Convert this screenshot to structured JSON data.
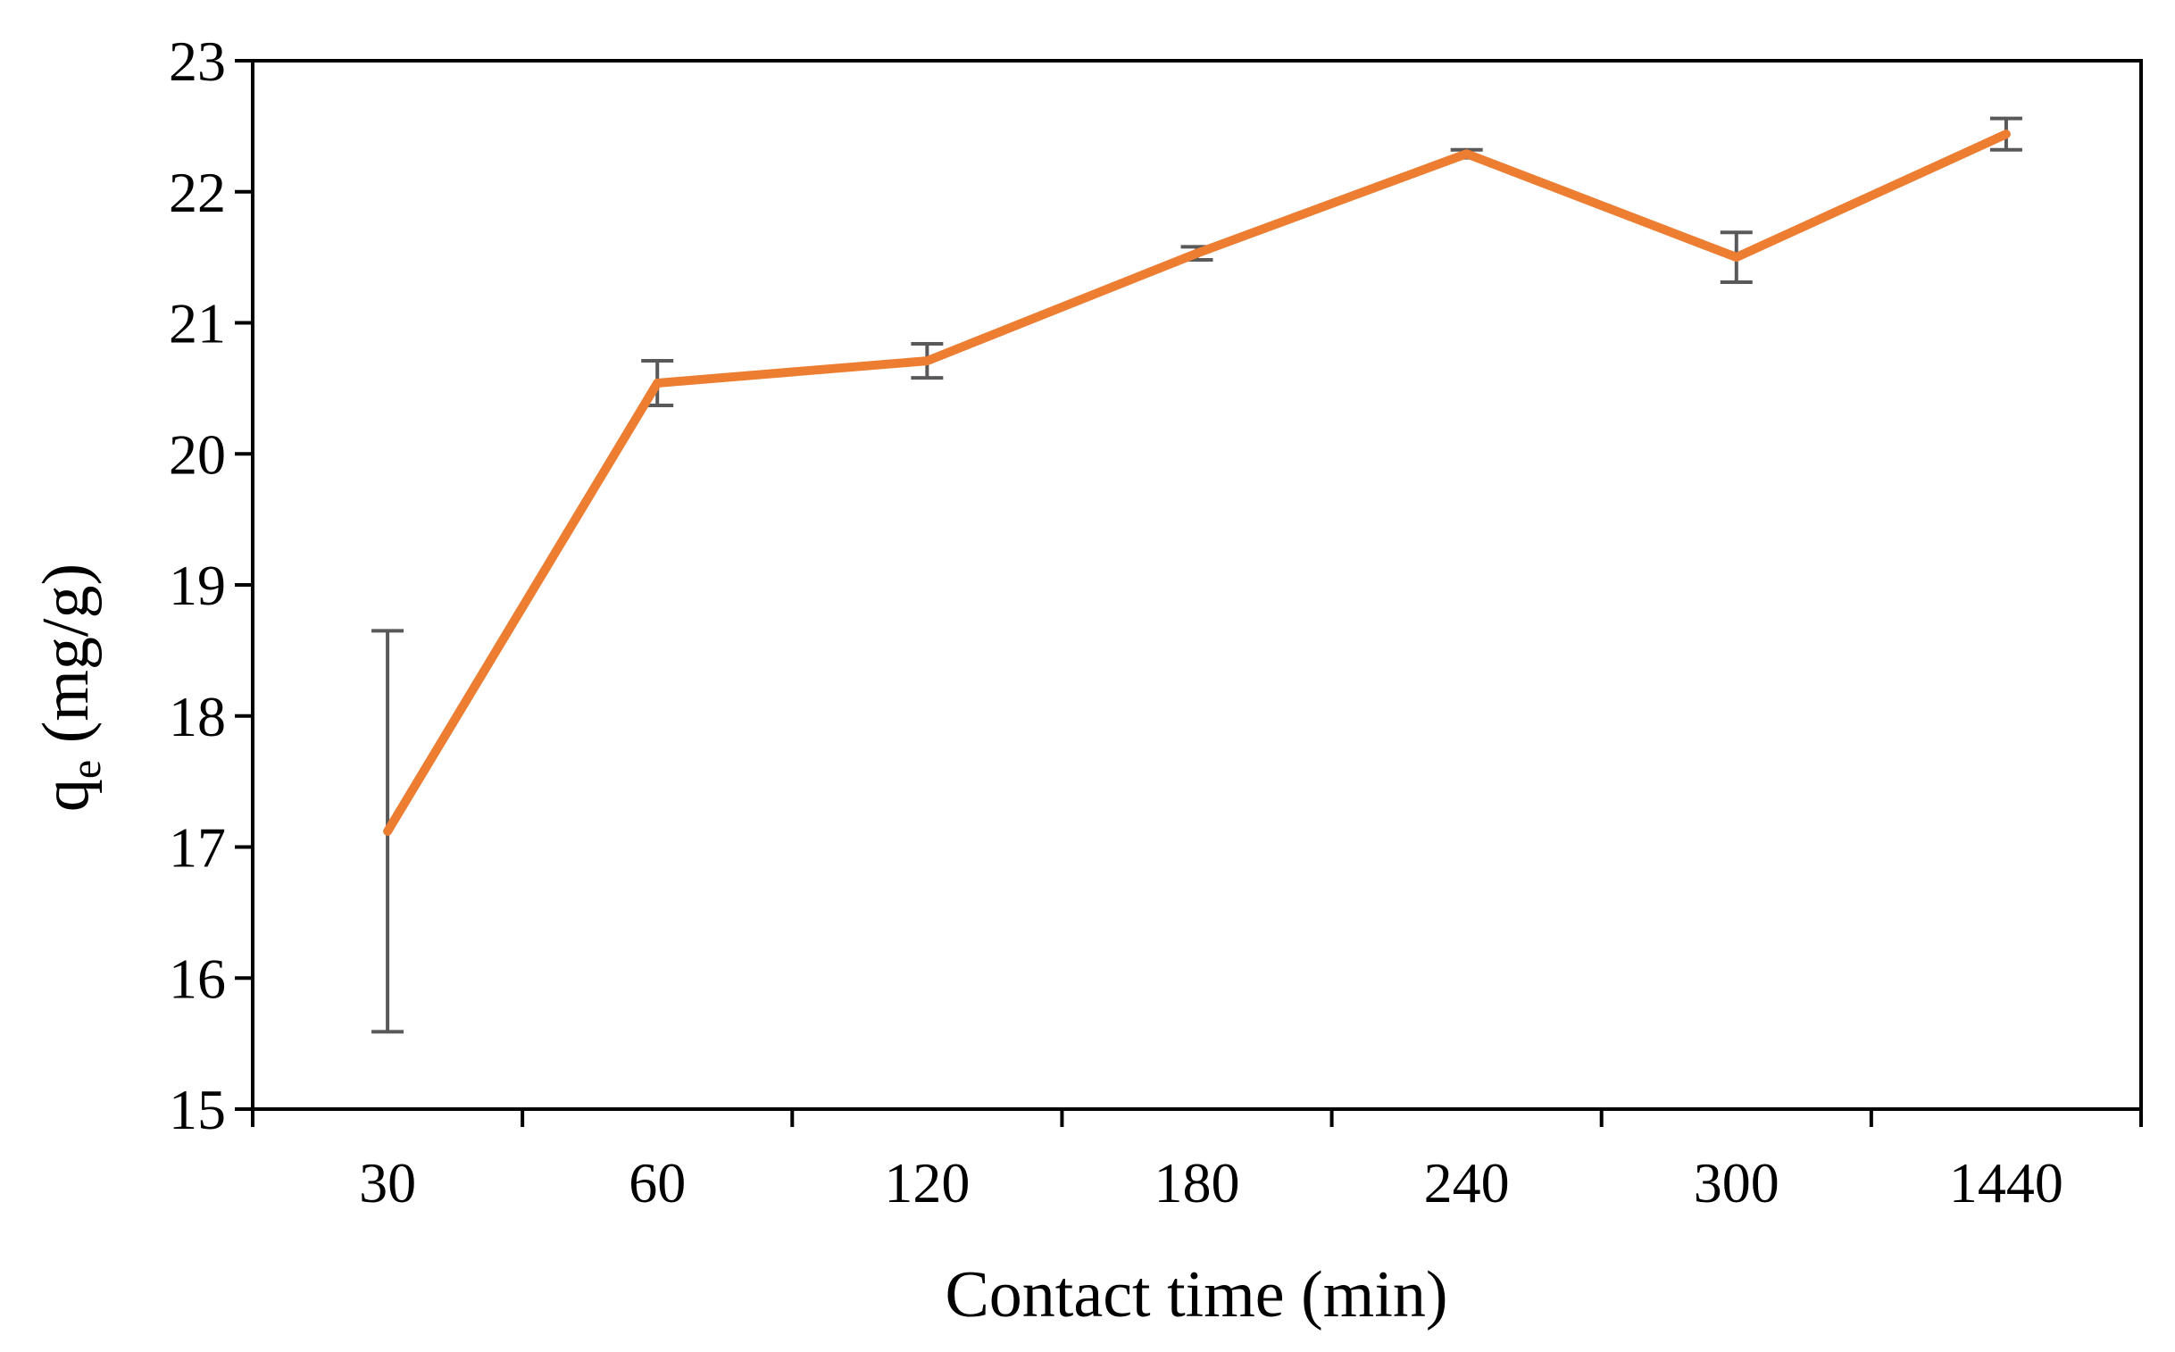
{
  "chart_data": {
    "type": "line",
    "xlabel": "Contact time (min)",
    "ylabel": {
      "main": "q",
      "subscript": "e",
      "unit": " (mg/g)"
    },
    "categories": [
      "30",
      "60",
      "120",
      "180",
      "240",
      "300",
      "1440"
    ],
    "ylim": [
      15,
      23
    ],
    "yticks": [
      "15",
      "16",
      "17",
      "18",
      "19",
      "20",
      "21",
      "22",
      "23"
    ],
    "grid": false,
    "legend": "none",
    "series": [
      {
        "values": [
          17.12,
          20.54,
          20.71,
          21.53,
          22.29,
          21.5,
          22.44
        ],
        "error": [
          1.53,
          0.17,
          0.13,
          0.05,
          0.03,
          0.19,
          0.12
        ],
        "color": "#ED7D31"
      }
    ],
    "error_bar_color": "#595959",
    "axis_color": "#000000"
  }
}
